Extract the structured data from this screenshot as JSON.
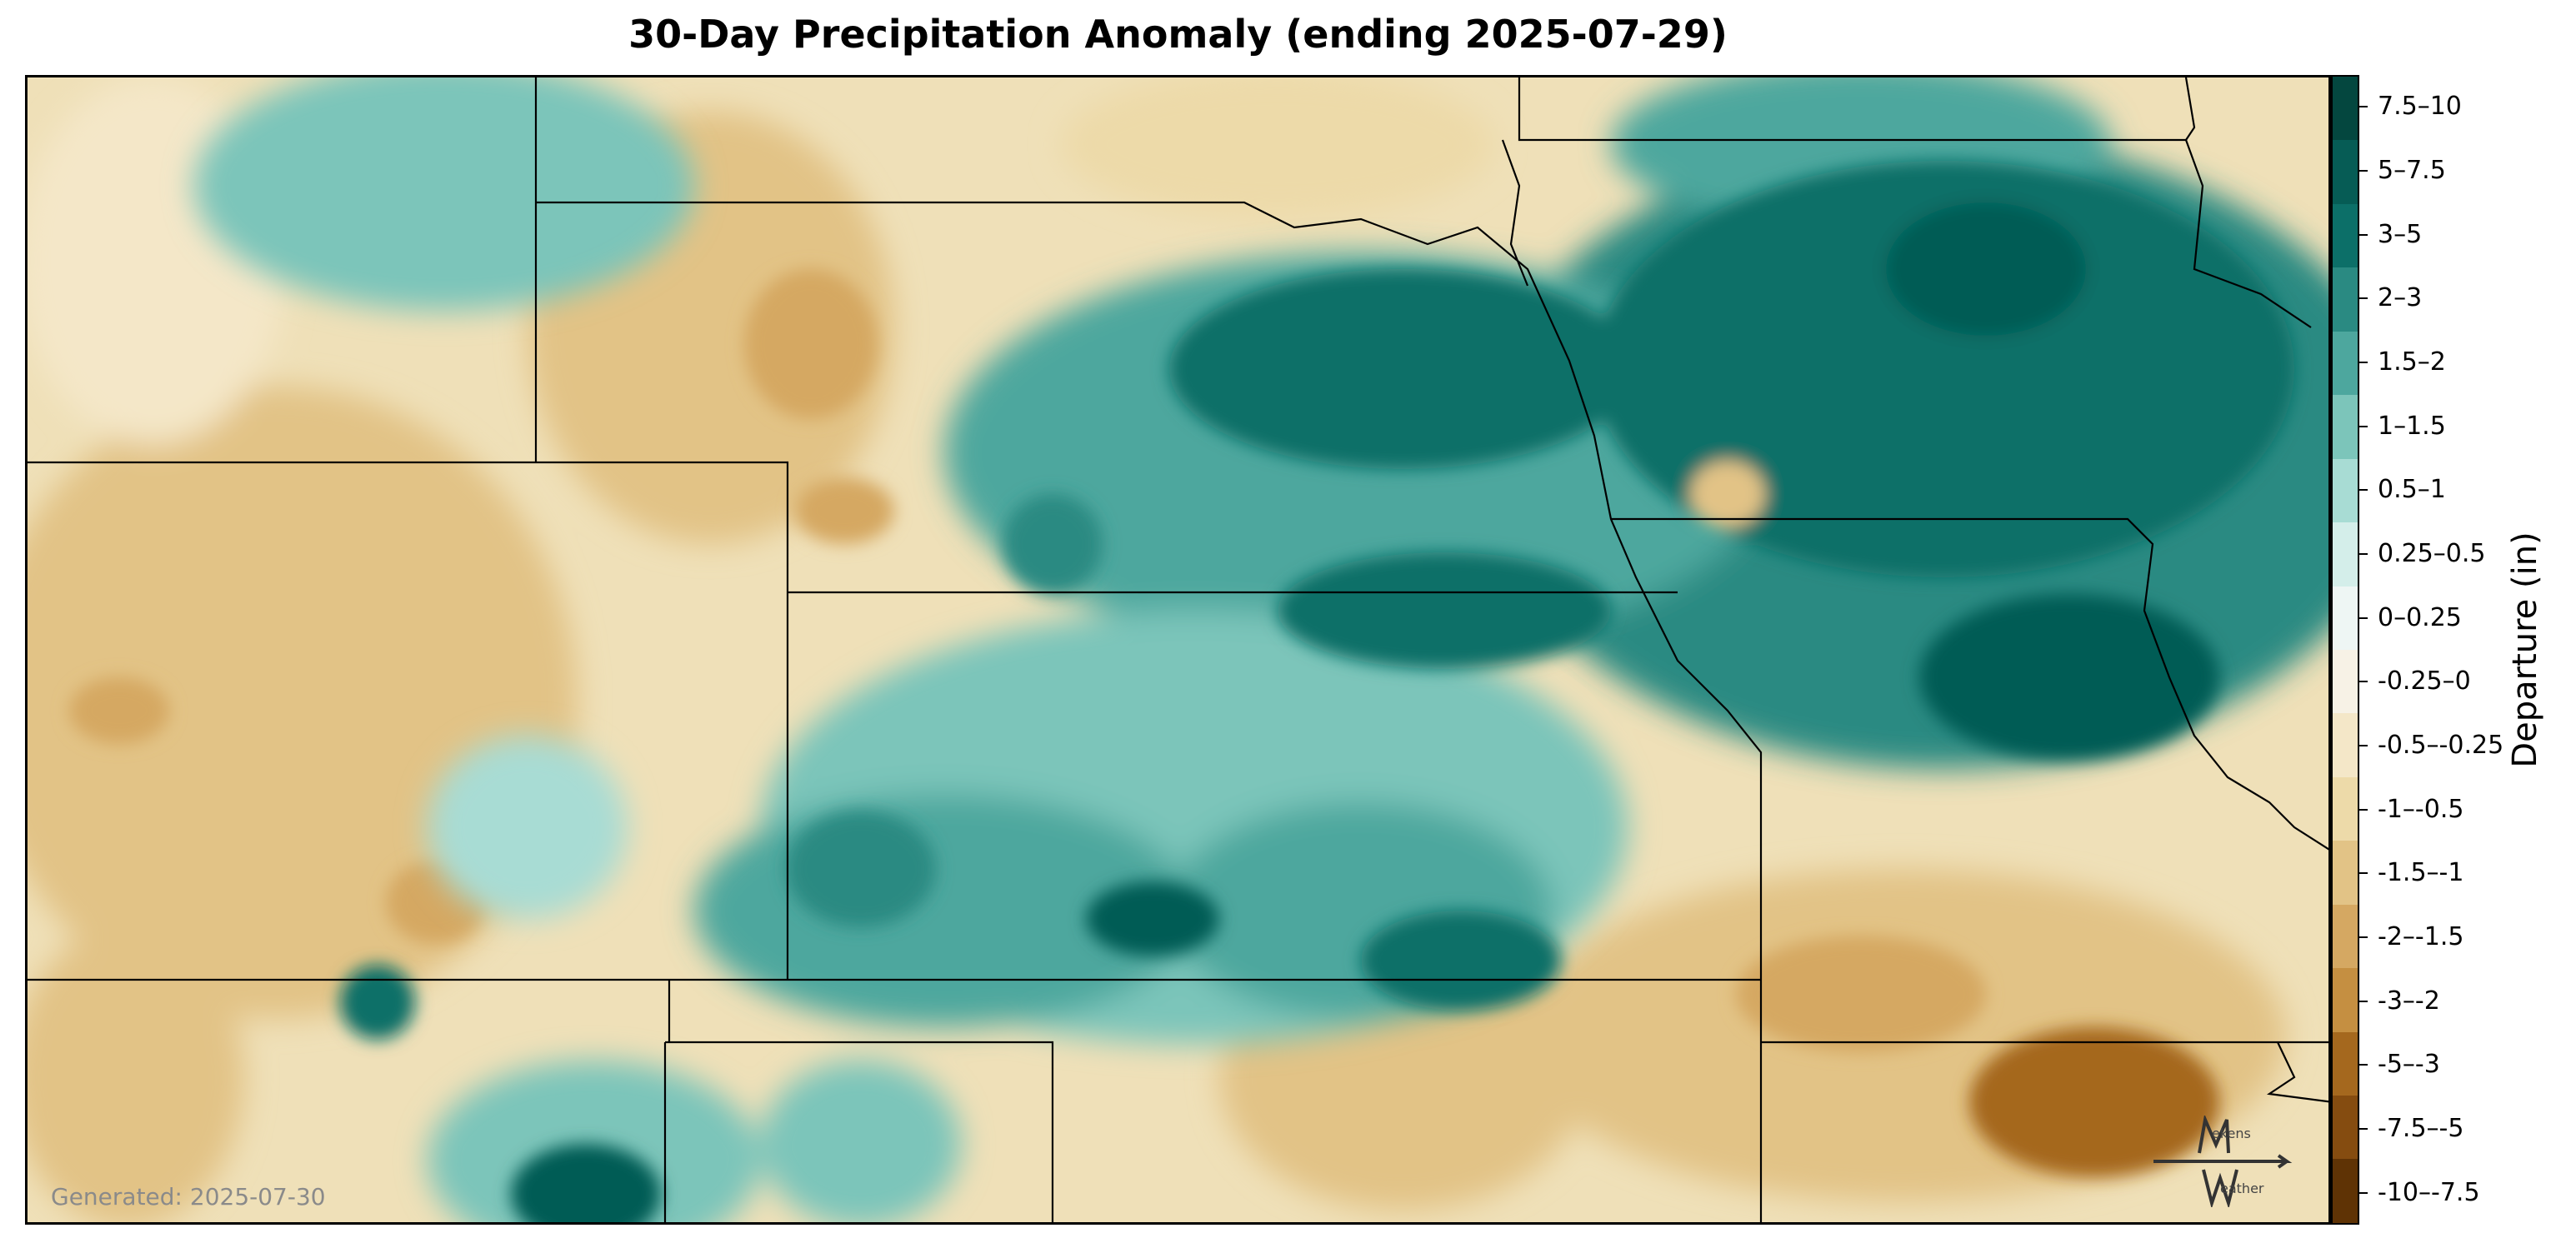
{
  "title": "30-Day Precipitation Anomaly (ending 2025-07-29)",
  "generated": "Generated: 2025-07-30",
  "colorbar": {
    "label": "Departure (in)",
    "levels": [
      {
        "label": "7.5–10",
        "color": "#04473f"
      },
      {
        "label": "5–7.5",
        "color": "#065c55"
      },
      {
        "label": "3–5",
        "color": "#0c6f68"
      },
      {
        "label": "2–3",
        "color": "#2a8a82"
      },
      {
        "label": "1.5–2",
        "color": "#4da79e"
      },
      {
        "label": "1–1.5",
        "color": "#7cc5ba"
      },
      {
        "label": "0.5–1",
        "color": "#a8dcd4"
      },
      {
        "label": "0.25–0.5",
        "color": "#d4eeea"
      },
      {
        "label": "0–0.25",
        "color": "#eef6f4"
      },
      {
        "label": "-0.25–0",
        "color": "#f7f2e6"
      },
      {
        "label": "-0.5–-0.25",
        "color": "#f4e7c8"
      },
      {
        "label": "-1–-0.5",
        "color": "#eddaa9"
      },
      {
        "label": "-1.5–-1",
        "color": "#e2c386"
      },
      {
        "label": "-2–-1.5",
        "color": "#d5a862"
      },
      {
        "label": "-3–-2",
        "color": "#c58f41"
      },
      {
        "label": "-5–-3",
        "color": "#a5681e"
      },
      {
        "label": "-7.5–-5",
        "color": "#854c10"
      },
      {
        "label": "-10–-7.5",
        "color": "#5f3305"
      }
    ]
  },
  "logo": {
    "line1": "ekens",
    "line2": "eather"
  }
}
